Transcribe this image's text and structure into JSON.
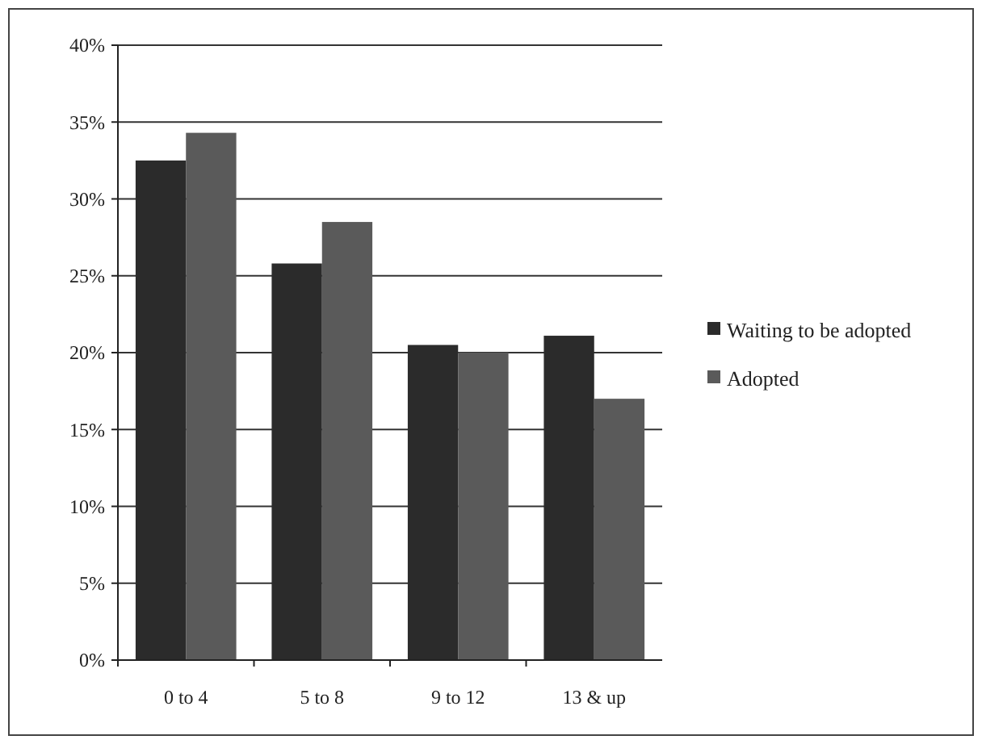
{
  "chart_data": {
    "type": "bar",
    "categories": [
      "0 to 4",
      "5 to 8",
      "9 to 12",
      "13 & up"
    ],
    "series": [
      {
        "name": "Waiting to be adopted",
        "color": "#2b2b2b",
        "values": [
          32.5,
          25.8,
          20.5,
          21.1
        ]
      },
      {
        "name": "Adopted",
        "color": "#5a5a5a",
        "values": [
          34.3,
          28.5,
          20.0,
          17.0
        ]
      }
    ],
    "ylim": [
      0,
      40
    ],
    "yticks": [
      {
        "value": 0,
        "label": "0%"
      },
      {
        "value": 5,
        "label": "5%"
      },
      {
        "value": 10,
        "label": "10%"
      },
      {
        "value": 15,
        "label": "15%"
      },
      {
        "value": 20,
        "label": "20%"
      },
      {
        "value": 25,
        "label": "25%"
      },
      {
        "value": 30,
        "label": "30%"
      },
      {
        "value": 35,
        "label": "35%"
      },
      {
        "value": 40,
        "label": "40%"
      }
    ],
    "grid": "y",
    "legend": "right"
  }
}
